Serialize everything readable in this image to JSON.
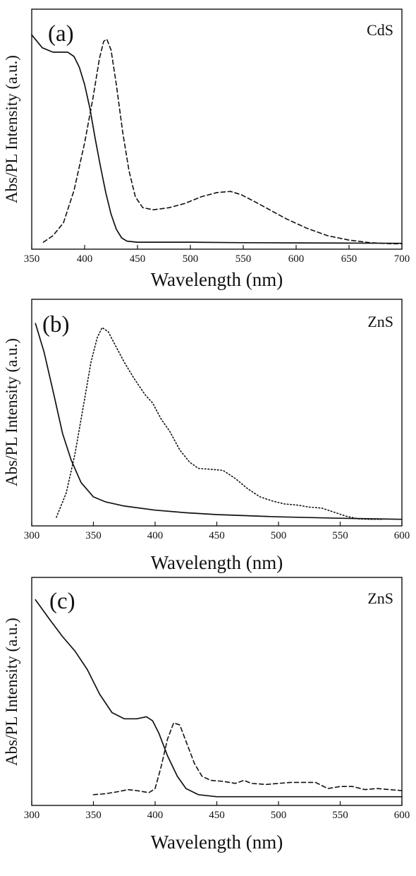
{
  "chart_data": [
    {
      "type": "line",
      "panel_label": "(a)",
      "material": "CdS",
      "xlabel": "Wavelength (nm)",
      "ylabel": "Abs/PL Intensity (a.u.)",
      "xlim": [
        350,
        700
      ],
      "ylim": [
        0,
        1
      ],
      "xticks": [
        "350",
        "400",
        "450",
        "500",
        "550",
        "600",
        "650",
        "700"
      ],
      "grid": false,
      "series": [
        {
          "style": "solid",
          "points": [
            [
              350,
              0.97
            ],
            [
              360,
              0.91
            ],
            [
              370,
              0.89
            ],
            [
              378,
              0.89
            ],
            [
              384,
              0.89
            ],
            [
              390,
              0.87
            ],
            [
              395,
              0.82
            ],
            [
              400,
              0.74
            ],
            [
              405,
              0.63
            ],
            [
              410,
              0.49
            ],
            [
              415,
              0.36
            ],
            [
              420,
              0.24
            ],
            [
              425,
              0.14
            ],
            [
              430,
              0.07
            ],
            [
              435,
              0.03
            ],
            [
              440,
              0.015
            ],
            [
              450,
              0.01
            ],
            [
              500,
              0.01
            ],
            [
              550,
              0.008
            ],
            [
              600,
              0.007
            ],
            [
              650,
              0.006
            ],
            [
              700,
              0.005
            ]
          ]
        },
        {
          "style": "dashed",
          "points": [
            [
              361,
              0.01
            ],
            [
              370,
              0.04
            ],
            [
              380,
              0.1
            ],
            [
              390,
              0.25
            ],
            [
              400,
              0.47
            ],
            [
              408,
              0.68
            ],
            [
              414,
              0.86
            ],
            [
              418,
              0.94
            ],
            [
              421,
              0.95
            ],
            [
              425,
              0.9
            ],
            [
              430,
              0.74
            ],
            [
              436,
              0.52
            ],
            [
              442,
              0.34
            ],
            [
              448,
              0.22
            ],
            [
              455,
              0.17
            ],
            [
              465,
              0.16
            ],
            [
              480,
              0.17
            ],
            [
              495,
              0.19
            ],
            [
              510,
              0.22
            ],
            [
              525,
              0.24
            ],
            [
              538,
              0.245
            ],
            [
              548,
              0.23
            ],
            [
              560,
              0.2
            ],
            [
              575,
              0.16
            ],
            [
              590,
              0.12
            ],
            [
              610,
              0.075
            ],
            [
              630,
              0.04
            ],
            [
              650,
              0.02
            ],
            [
              670,
              0.008
            ],
            [
              690,
              0.003
            ],
            [
              700,
              0.003
            ]
          ]
        }
      ]
    },
    {
      "type": "line",
      "panel_label": "(b)",
      "material": "ZnS",
      "xlabel": "Wavelength (nm)",
      "ylabel": "Abs/PL Intensity (a.u.)",
      "xlim": [
        300,
        600
      ],
      "ylim": [
        0,
        1
      ],
      "xticks": [
        "300",
        "350",
        "400",
        "450",
        "500",
        "550",
        "600"
      ],
      "grid": false,
      "series": [
        {
          "style": "solid",
          "points": [
            [
              303,
              0.97
            ],
            [
              310,
              0.83
            ],
            [
              318,
              0.62
            ],
            [
              325,
              0.43
            ],
            [
              332,
              0.3
            ],
            [
              340,
              0.19
            ],
            [
              350,
              0.12
            ],
            [
              360,
              0.095
            ],
            [
              375,
              0.075
            ],
            [
              400,
              0.055
            ],
            [
              425,
              0.042
            ],
            [
              450,
              0.033
            ],
            [
              500,
              0.022
            ],
            [
              550,
              0.015
            ],
            [
              600,
              0.01
            ]
          ]
        },
        {
          "style": "dotted",
          "points": [
            [
              320,
              0.02
            ],
            [
              328,
              0.14
            ],
            [
              335,
              0.33
            ],
            [
              342,
              0.57
            ],
            [
              348,
              0.78
            ],
            [
              353,
              0.9
            ],
            [
              357,
              0.95
            ],
            [
              362,
              0.93
            ],
            [
              368,
              0.86
            ],
            [
              375,
              0.78
            ],
            [
              383,
              0.7
            ],
            [
              392,
              0.62
            ],
            [
              398,
              0.58
            ],
            [
              405,
              0.5
            ],
            [
              412,
              0.44
            ],
            [
              420,
              0.35
            ],
            [
              428,
              0.29
            ],
            [
              435,
              0.26
            ],
            [
              445,
              0.255
            ],
            [
              455,
              0.25
            ],
            [
              465,
              0.21
            ],
            [
              475,
              0.16
            ],
            [
              485,
              0.12
            ],
            [
              495,
              0.1
            ],
            [
              505,
              0.085
            ],
            [
              515,
              0.08
            ],
            [
              525,
              0.07
            ],
            [
              535,
              0.065
            ],
            [
              545,
              0.045
            ],
            [
              555,
              0.025
            ],
            [
              565,
              0.012
            ],
            [
              575,
              0.01
            ],
            [
              585,
              0.01
            ]
          ]
        }
      ]
    },
    {
      "type": "line",
      "panel_label": "(c)",
      "material": "ZnS",
      "xlabel": "Wavelength (nm)",
      "ylabel": "Abs/PL Intensity (a.u.)",
      "xlim": [
        300,
        600
      ],
      "ylim": [
        0,
        1
      ],
      "xticks": [
        "300",
        "350",
        "400",
        "450",
        "500",
        "550",
        "600"
      ],
      "grid": false,
      "series": [
        {
          "style": "solid",
          "points": [
            [
              303,
              0.98
            ],
            [
              315,
              0.88
            ],
            [
              325,
              0.8
            ],
            [
              335,
              0.73
            ],
            [
              345,
              0.64
            ],
            [
              355,
              0.52
            ],
            [
              365,
              0.43
            ],
            [
              375,
              0.4
            ],
            [
              385,
              0.4
            ],
            [
              393,
              0.41
            ],
            [
              398,
              0.39
            ],
            [
              403,
              0.33
            ],
            [
              410,
              0.22
            ],
            [
              418,
              0.12
            ],
            [
              425,
              0.06
            ],
            [
              435,
              0.03
            ],
            [
              450,
              0.02
            ],
            [
              500,
              0.02
            ],
            [
              550,
              0.02
            ],
            [
              600,
              0.02
            ]
          ]
        },
        {
          "style": "dashed",
          "points": [
            [
              350,
              0.03
            ],
            [
              360,
              0.035
            ],
            [
              370,
              0.045
            ],
            [
              378,
              0.055
            ],
            [
              385,
              0.05
            ],
            [
              395,
              0.04
            ],
            [
              400,
              0.06
            ],
            [
              405,
              0.17
            ],
            [
              410,
              0.3
            ],
            [
              415,
              0.38
            ],
            [
              420,
              0.37
            ],
            [
              425,
              0.29
            ],
            [
              432,
              0.18
            ],
            [
              438,
              0.12
            ],
            [
              445,
              0.1
            ],
            [
              455,
              0.095
            ],
            [
              465,
              0.085
            ],
            [
              472,
              0.1
            ],
            [
              478,
              0.085
            ],
            [
              490,
              0.08
            ],
            [
              510,
              0.09
            ],
            [
              530,
              0.09
            ],
            [
              540,
              0.06
            ],
            [
              550,
              0.07
            ],
            [
              560,
              0.07
            ],
            [
              570,
              0.055
            ],
            [
              580,
              0.06
            ],
            [
              590,
              0.055
            ],
            [
              600,
              0.05
            ]
          ]
        }
      ]
    }
  ]
}
